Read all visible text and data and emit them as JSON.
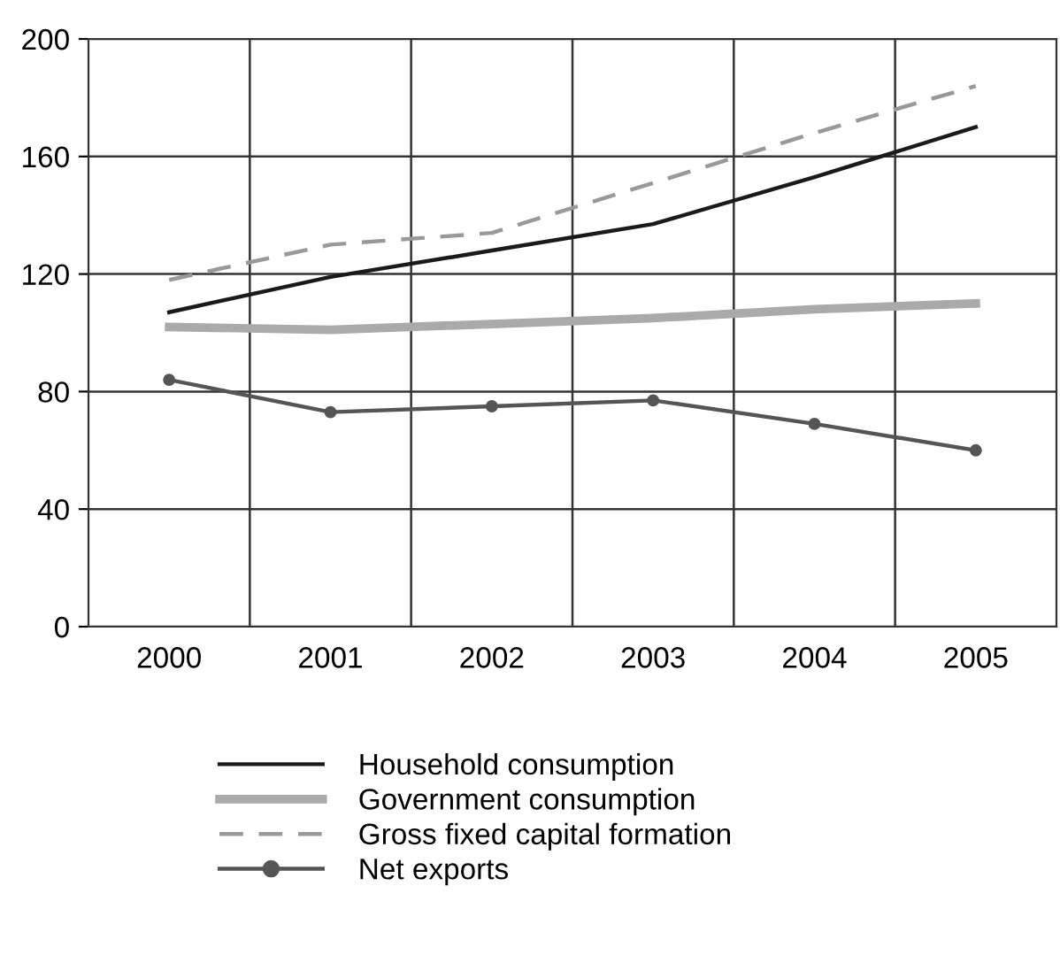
{
  "chart_data": {
    "type": "line",
    "categories": [
      "2000",
      "2001",
      "2002",
      "2003",
      "2004",
      "2005"
    ],
    "series": [
      {
        "name": "Household consumption",
        "color": "#1a1a1a",
        "line_style": "solid",
        "values": [
          107,
          119,
          128,
          137,
          153,
          170
        ]
      },
      {
        "name": "Government consumption",
        "color": "#aaaaaa",
        "line_style": "solid",
        "values": [
          102,
          101,
          103,
          105,
          108,
          110
        ]
      },
      {
        "name": "Gross fixed capital formation",
        "color": "#999999",
        "line_style": "dashed",
        "values": [
          118,
          130,
          134,
          151,
          168,
          184
        ]
      },
      {
        "name": "Net exports",
        "color": "#555555",
        "line_style": "solid",
        "marker": "circle",
        "values": [
          84,
          73,
          75,
          77,
          69,
          60
        ]
      }
    ],
    "ylim": [
      0,
      200
    ],
    "yticks": [
      0,
      40,
      80,
      120,
      160,
      200
    ],
    "grid": true,
    "legend": "bottom"
  }
}
